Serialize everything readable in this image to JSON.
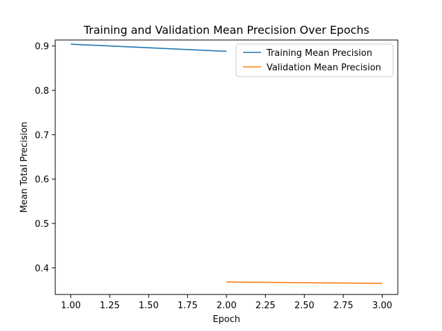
{
  "chart_data": {
    "type": "line",
    "title": "Training and Validation Mean Precision Over Epochs",
    "xlabel": "Epoch",
    "ylabel": "Mean Total Precision",
    "xlim": [
      0.9,
      3.1
    ],
    "ylim": [
      0.34,
      0.9135
    ],
    "x_ticks": [
      1.0,
      1.25,
      1.5,
      1.75,
      2.0,
      2.25,
      2.5,
      2.75,
      3.0
    ],
    "x_tick_labels": [
      "1.00",
      "1.25",
      "1.50",
      "1.75",
      "2.00",
      "2.25",
      "2.50",
      "2.75",
      "3.00"
    ],
    "y_ticks": [
      0.4,
      0.5,
      0.6,
      0.7,
      0.8,
      0.9
    ],
    "y_tick_labels": [
      "0.4",
      "0.5",
      "0.6",
      "0.7",
      "0.8",
      "0.9"
    ],
    "grid": false,
    "legend_position": "top-right",
    "series": [
      {
        "name": "Training Mean Precision",
        "color": "#1f77b4",
        "x": [
          1.0,
          2.0
        ],
        "y": [
          0.904,
          0.888
        ]
      },
      {
        "name": "Validation Mean Precision",
        "color": "#ff7f0e",
        "x": [
          2.0,
          3.0
        ],
        "y": [
          0.368,
          0.365
        ]
      }
    ]
  }
}
